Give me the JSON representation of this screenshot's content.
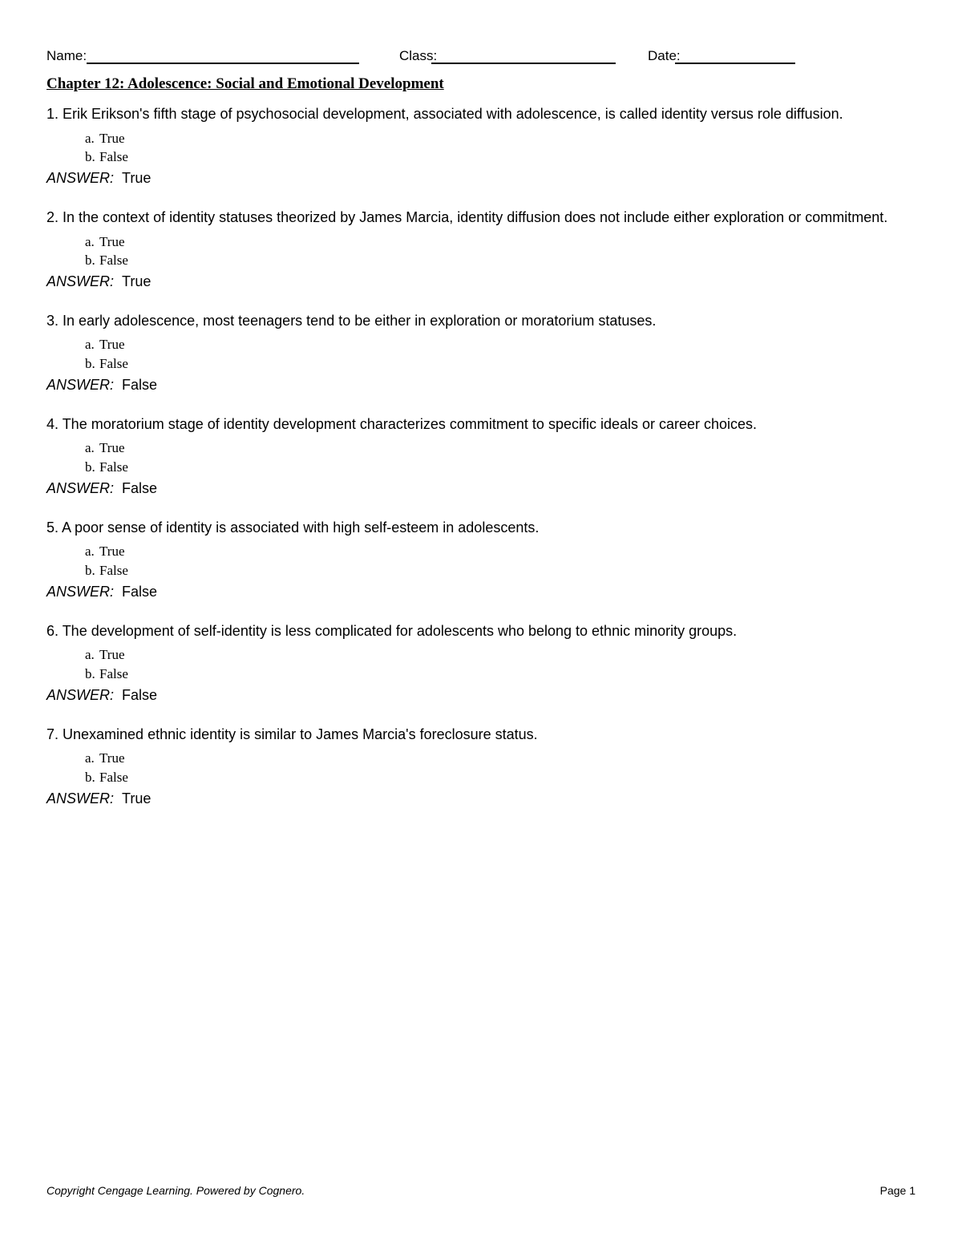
{
  "header": {
    "name_label": "Name:",
    "class_label": "Class:",
    "date_label": "Date:"
  },
  "chapter_title": "Chapter 12: Adolescence: Social and Emotional Development",
  "option_a_letter": "a.",
  "option_b_letter": "b.",
  "option_true": "True",
  "option_false": "False",
  "answer_label": "ANSWER:",
  "questions": [
    {
      "num": "1.",
      "text": "Erik Erikson's fifth stage of psychosocial development, associated with adolescence, is called identity versus role diffusion.",
      "answer": "True"
    },
    {
      "num": "2.",
      "text": "In the context of identity statuses theorized by James Marcia, identity diffusion does not include either exploration or commitment.",
      "answer": "True"
    },
    {
      "num": "3.",
      "text": "In early adolescence, most teenagers tend to be either in exploration or moratorium statuses.",
      "answer": "False"
    },
    {
      "num": "4.",
      "text": "The moratorium stage of identity development characterizes commitment to specific ideals or career choices.",
      "answer": "False"
    },
    {
      "num": "5.",
      "text": "A poor sense of identity is associated with high self-esteem in adolescents.",
      "answer": "False"
    },
    {
      "num": "6.",
      "text": "The development of self-identity is less complicated for adolescents who belong to ethnic minority groups.",
      "answer": "False"
    },
    {
      "num": "7.",
      "text": "Unexamined ethnic identity is similar to James Marcia's foreclosure status.",
      "answer": "True"
    }
  ],
  "footer": {
    "copyright": "Copyright Cengage Learning. Powered by Cognero.",
    "page": "Page 1"
  },
  "colors": {
    "text": "#000000",
    "background": "#ffffff",
    "line": "#000000"
  }
}
